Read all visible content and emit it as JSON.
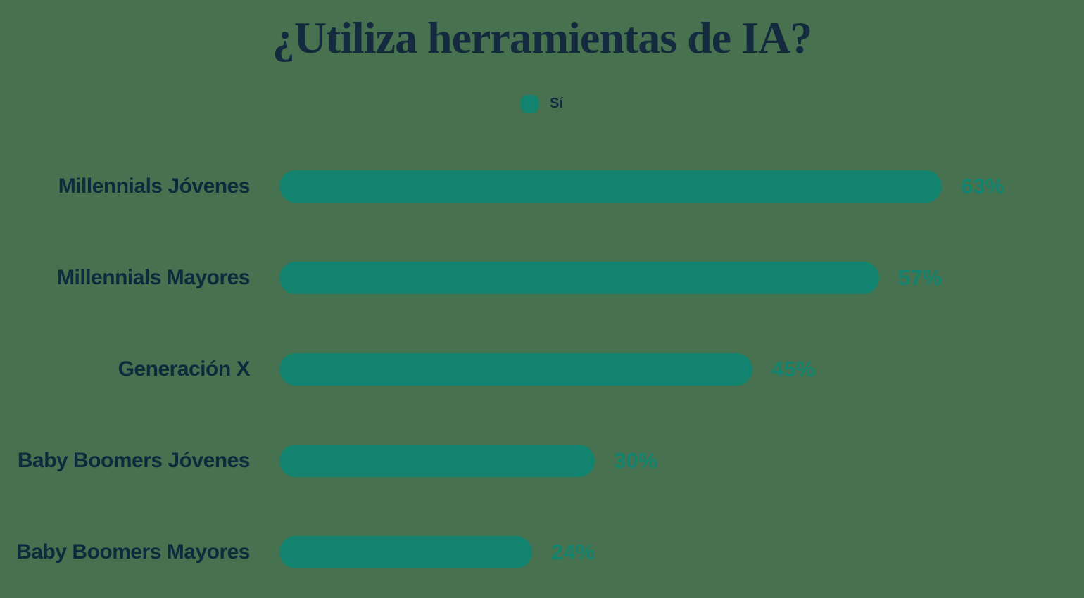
{
  "chart_data": {
    "type": "bar",
    "orientation": "horizontal",
    "title": "¿Utiliza herramientas de IA?",
    "legend": [
      {
        "label": "Sí",
        "color": "#12836E"
      }
    ],
    "legend_position": "top-center",
    "categories": [
      "Millennials Jóvenes",
      "Millennials Mayores",
      "Generación X",
      "Baby Boomers Jóvenes",
      "Baby Boomers Mayores"
    ],
    "series": [
      {
        "name": "Sí",
        "values": [
          63,
          57,
          45,
          30,
          24
        ]
      }
    ],
    "value_suffix": "%",
    "value_labels_shown": true,
    "axes_shown": false,
    "grid": false,
    "xlim": [
      0,
      100
    ],
    "colors": {
      "bar": "#12836E",
      "background": "#47714F",
      "title_text": "#142A3E",
      "category_text": "#0E2A3D",
      "value_text": "#12836E"
    }
  }
}
